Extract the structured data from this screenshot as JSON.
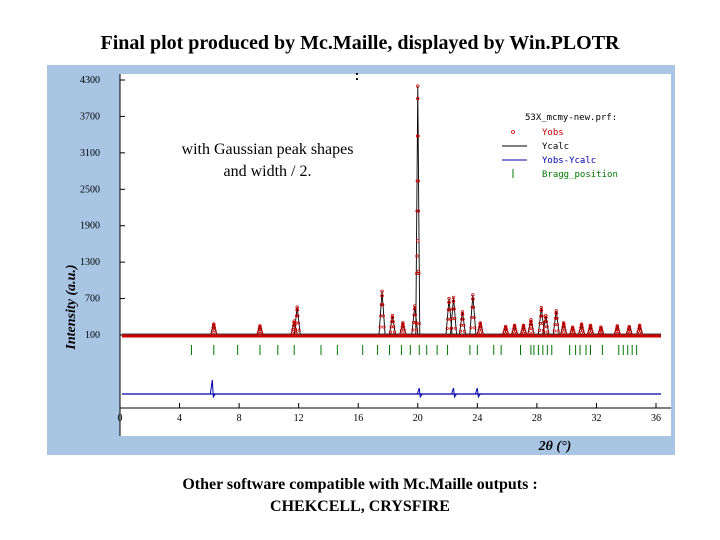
{
  "slide": {
    "title": "Final plot produced by Mc.Maille, displayed by Win.PLOTR",
    "annotation_line1": "with Gaussian peak shapes",
    "annotation_line2": "and width / 2.",
    "footer_line1": "Other software compatible with Mc.Maille outputs :",
    "footer_line2": "CHEKCELL, CRYSFIRE",
    "colors": {
      "plot_window_bg": "#a9c5e4",
      "plot_area_bg": "#ffffff",
      "yobs": "#cc0000",
      "ycalc": "#000000",
      "diff": "#0000aa",
      "bragg": "#007700"
    }
  },
  "chart_data": {
    "type": "line",
    "xlabel": "2θ (°)",
    "ylabel": "Intensity (a.u.)",
    "x_ticks": [
      "0",
      "4",
      "8",
      "12",
      "16",
      "20",
      "24",
      "28",
      "32",
      "36"
    ],
    "y_ticks": [
      "4300",
      "3700",
      "3100",
      "2500",
      "1900",
      "1300",
      "700",
      "100"
    ],
    "xlim": [
      0,
      36
    ],
    "ylim": [
      -100,
      4300
    ],
    "legend": {
      "title": "53X_mcmy-new.prf:",
      "placement": "top-right",
      "entries": [
        "Yobs",
        "Ycalc",
        "Yobs-Ycalc",
        "Bragg_position"
      ]
    },
    "peaks": [
      {
        "x": 6.3,
        "y": 280
      },
      {
        "x": 9.4,
        "y": 250
      },
      {
        "x": 11.7,
        "y": 330
      },
      {
        "x": 11.9,
        "y": 560
      },
      {
        "x": 17.6,
        "y": 820
      },
      {
        "x": 18.3,
        "y": 420
      },
      {
        "x": 19.0,
        "y": 300
      },
      {
        "x": 19.8,
        "y": 580
      },
      {
        "x": 20.0,
        "y": 4200
      },
      {
        "x": 22.1,
        "y": 700
      },
      {
        "x": 22.4,
        "y": 720
      },
      {
        "x": 23.0,
        "y": 480
      },
      {
        "x": 23.7,
        "y": 760
      },
      {
        "x": 24.2,
        "y": 300
      },
      {
        "x": 25.9,
        "y": 240
      },
      {
        "x": 26.5,
        "y": 260
      },
      {
        "x": 27.1,
        "y": 260
      },
      {
        "x": 27.6,
        "y": 350
      },
      {
        "x": 28.3,
        "y": 550
      },
      {
        "x": 28.6,
        "y": 420
      },
      {
        "x": 29.3,
        "y": 500
      },
      {
        "x": 29.8,
        "y": 300
      },
      {
        "x": 30.4,
        "y": 230
      },
      {
        "x": 31.0,
        "y": 280
      },
      {
        "x": 31.6,
        "y": 260
      },
      {
        "x": 32.3,
        "y": 230
      },
      {
        "x": 33.4,
        "y": 250
      },
      {
        "x": 34.2,
        "y": 240
      },
      {
        "x": 34.9,
        "y": 260
      }
    ],
    "bragg_positions": [
      4.8,
      6.3,
      7.9,
      9.4,
      10.6,
      11.7,
      13.5,
      14.6,
      16.3,
      17.3,
      18.1,
      18.9,
      19.5,
      20.1,
      20.6,
      21.3,
      22.0,
      23.5,
      24.0,
      25.1,
      25.6,
      26.9,
      27.6,
      27.8,
      28.1,
      28.4,
      28.7,
      29.0,
      30.2,
      30.6,
      30.9,
      31.3,
      31.6,
      32.4,
      33.5,
      33.8,
      34.1,
      34.4,
      34.7
    ],
    "difference_features": [
      6.2,
      20.1,
      22.4,
      24.0
    ]
  }
}
